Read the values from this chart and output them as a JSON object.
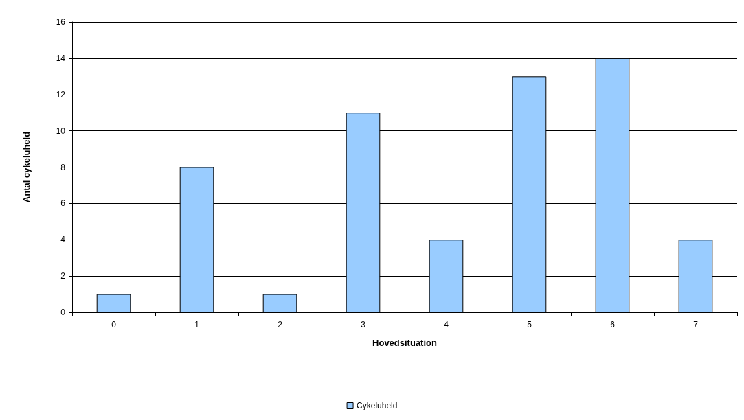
{
  "chart_data": {
    "type": "bar",
    "xlabel": "Hovedsituation",
    "ylabel": "Antal cykeluheld",
    "categories": [
      "0",
      "1",
      "2",
      "3",
      "4",
      "5",
      "6",
      "7"
    ],
    "series": [
      {
        "name": "Cykeluheld",
        "color": "#99ccff",
        "values": [
          1,
          8,
          1,
          11,
          4,
          13,
          14,
          4
        ]
      }
    ],
    "ylim": [
      0,
      16
    ],
    "yticks": [
      0,
      2,
      4,
      6,
      8,
      10,
      12,
      14,
      16
    ],
    "grid": "y",
    "legend": "bottom"
  }
}
